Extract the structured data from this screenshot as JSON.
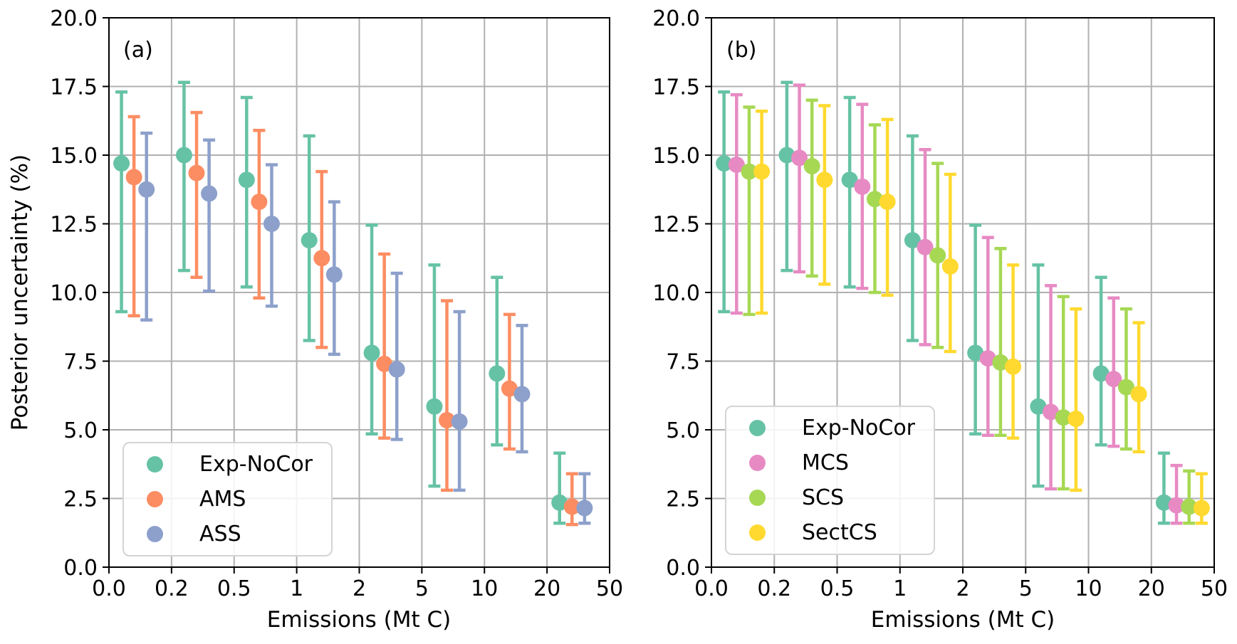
{
  "figure": {
    "background": "#ffffff",
    "grid_color": "#b0b0b0",
    "axis_color": "#000000"
  },
  "chart_data": [
    {
      "type": "scatter",
      "panel_label": "(a)",
      "xlabel": "Emissions (Mt C)",
      "ylabel": "Posterior uncertainty (%)",
      "x_scale": "log-like (ticks equally spaced)",
      "x_tick_labels": [
        "0.0",
        "0.2",
        "0.5",
        "1",
        "2",
        "5",
        "10",
        "20",
        "50"
      ],
      "y_tick_labels": [
        "0.0",
        "2.5",
        "5.0",
        "7.5",
        "10.0",
        "12.5",
        "15.0",
        "17.5",
        "20.0"
      ],
      "ylim": [
        0,
        20
      ],
      "grid": true,
      "legend_position": "lower left",
      "emissions_mtc_est": [
        0.13,
        0.29,
        0.66,
        1.32,
        2.9,
        6.6,
        13.2,
        28.9
      ],
      "series": [
        {
          "name": "Exp-NoCor",
          "color": "#66c2a5",
          "values": [
            14.7,
            15.0,
            14.1,
            11.9,
            7.8,
            5.85,
            7.05,
            2.35
          ],
          "whisker_low": [
            9.3,
            10.8,
            10.2,
            8.25,
            4.85,
            2.95,
            4.45,
            1.6
          ],
          "whisker_high": [
            17.3,
            17.65,
            17.1,
            15.7,
            12.45,
            11.0,
            10.55,
            4.15
          ]
        },
        {
          "name": "AMS",
          "color": "#fc8d62",
          "values": [
            14.2,
            14.35,
            13.3,
            11.25,
            7.4,
            5.35,
            6.5,
            2.2
          ],
          "whisker_low": [
            9.15,
            10.55,
            9.8,
            8.0,
            4.7,
            2.8,
            4.3,
            1.55
          ],
          "whisker_high": [
            16.4,
            16.55,
            15.9,
            14.4,
            11.4,
            9.7,
            9.2,
            3.4
          ]
        },
        {
          "name": "ASS",
          "color": "#8da0cb",
          "values": [
            13.75,
            13.6,
            12.5,
            10.65,
            7.2,
            5.3,
            6.3,
            2.15
          ],
          "whisker_low": [
            9.0,
            10.05,
            9.5,
            7.75,
            4.65,
            2.8,
            4.2,
            1.6
          ],
          "whisker_high": [
            15.8,
            15.55,
            14.65,
            13.3,
            10.7,
            9.3,
            8.8,
            3.4
          ]
        }
      ]
    },
    {
      "type": "scatter",
      "panel_label": "(b)",
      "xlabel": "Emissions (Mt C)",
      "ylabel": "",
      "x_scale": "log-like (ticks equally spaced)",
      "x_tick_labels": [
        "0.0",
        "0.2",
        "0.5",
        "1",
        "2",
        "5",
        "10",
        "20",
        "50"
      ],
      "y_tick_labels": [
        "0.0",
        "2.5",
        "5.0",
        "7.5",
        "10.0",
        "12.5",
        "15.0",
        "17.5",
        "20.0"
      ],
      "ylim": [
        0,
        20
      ],
      "grid": true,
      "legend_position": "lower left",
      "emissions_mtc_est": [
        0.13,
        0.29,
        0.66,
        1.32,
        2.9,
        6.6,
        13.2,
        28.9
      ],
      "series": [
        {
          "name": "Exp-NoCor",
          "color": "#66c2a5",
          "values": [
            14.7,
            15.0,
            14.1,
            11.9,
            7.8,
            5.85,
            7.05,
            2.35
          ],
          "whisker_low": [
            9.3,
            10.8,
            10.2,
            8.25,
            4.85,
            2.95,
            4.45,
            1.6
          ],
          "whisker_high": [
            17.3,
            17.65,
            17.1,
            15.7,
            12.45,
            11.0,
            10.55,
            4.15
          ]
        },
        {
          "name": "MCS",
          "color": "#e78ac3",
          "values": [
            14.65,
            14.9,
            13.85,
            11.65,
            7.6,
            5.65,
            6.85,
            2.25
          ],
          "whisker_low": [
            9.25,
            10.75,
            10.15,
            8.1,
            4.8,
            2.85,
            4.4,
            1.6
          ],
          "whisker_high": [
            17.2,
            17.55,
            16.85,
            15.2,
            12.0,
            10.25,
            9.8,
            3.7
          ]
        },
        {
          "name": "SCS",
          "color": "#a6d854",
          "values": [
            14.4,
            14.6,
            13.4,
            11.35,
            7.45,
            5.45,
            6.55,
            2.2
          ],
          "whisker_low": [
            9.2,
            10.6,
            10.0,
            8.0,
            4.8,
            2.85,
            4.3,
            1.6
          ],
          "whisker_high": [
            16.75,
            17.0,
            16.1,
            14.7,
            11.6,
            9.85,
            9.4,
            3.5
          ]
        },
        {
          "name": "SectCS",
          "color": "#ffd92f",
          "values": [
            14.4,
            14.1,
            13.3,
            10.95,
            7.3,
            5.4,
            6.3,
            2.15
          ],
          "whisker_low": [
            9.25,
            10.3,
            9.9,
            7.85,
            4.7,
            2.8,
            4.2,
            1.6
          ],
          "whisker_high": [
            16.6,
            16.8,
            16.3,
            14.3,
            11.0,
            9.4,
            8.9,
            3.4
          ]
        }
      ]
    }
  ]
}
